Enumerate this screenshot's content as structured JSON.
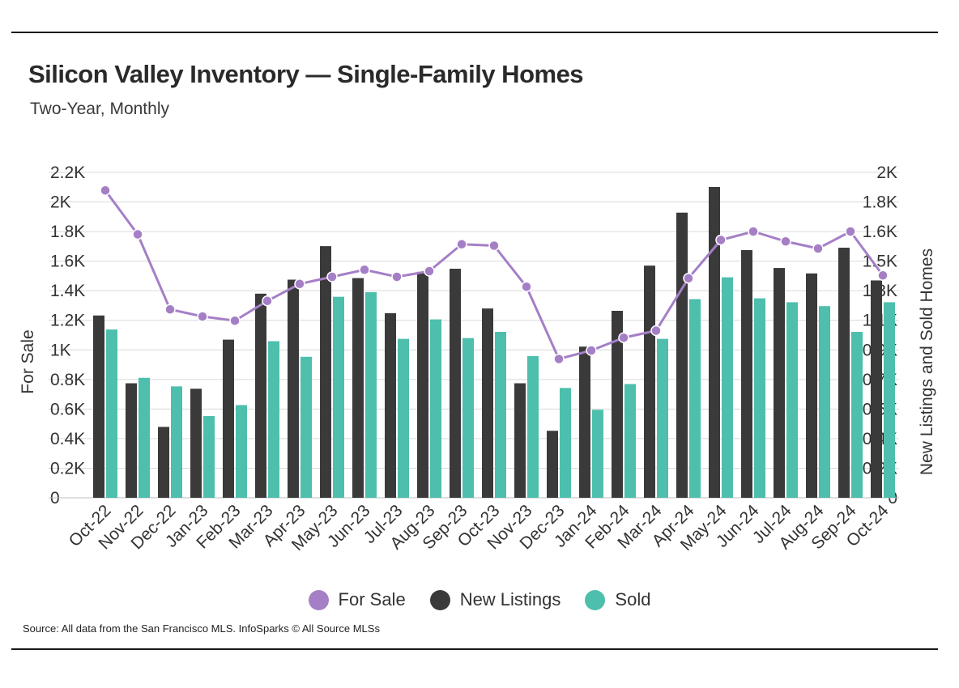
{
  "title": "Silicon Valley Inventory — Single-Family Homes",
  "subtitle": "Two-Year, Monthly",
  "source": "Source:  All data from the San Francisco MLS. InfoSparks © All Source MLSs",
  "colors": {
    "for_sale": "#a57fc6",
    "new_listings": "#3a3a3a",
    "sold": "#4dbfac",
    "grid": "#d9d9d9",
    "text": "#333333"
  },
  "legend": [
    {
      "label": "For Sale",
      "color": "#a57fc6"
    },
    {
      "label": "New Listings",
      "color": "#3a3a3a"
    },
    {
      "label": "Sold",
      "color": "#4dbfac"
    }
  ],
  "chart_data": {
    "type": "bar",
    "title": "Silicon Valley Inventory — Single-Family Homes",
    "subtitle": "Two-Year, Monthly",
    "categories": [
      "Oct-22",
      "Nov-22",
      "Dec-22",
      "Jan-23",
      "Feb-23",
      "Mar-23",
      "Apr-23",
      "May-23",
      "Jun-23",
      "Jul-23",
      "Aug-23",
      "Sep-23",
      "Oct-23",
      "Nov-23",
      "Dec-23",
      "Jan-24",
      "Feb-24",
      "Mar-24",
      "Apr-24",
      "May-24",
      "Jun-24",
      "Jul-24",
      "Aug-24",
      "Sep-24",
      "Oct-24"
    ],
    "left_axis": {
      "label": "For Sale",
      "ylim": [
        0,
        2200
      ],
      "ticks": [
        "0",
        "0.2K",
        "0.4K",
        "0.6K",
        "0.8K",
        "1K",
        "1.2K",
        "1.4K",
        "1.6K",
        "1.8K",
        "2K",
        "2.2K"
      ]
    },
    "right_axis": {
      "label": "New Listings and Sold Homes",
      "ylim": [
        0,
        2000
      ],
      "ticks": [
        "0",
        "0.2K",
        "0.4K",
        "0.5K",
        "0.7K",
        "0.9K",
        "1.1K",
        "1.3K",
        "1.5K",
        "1.6K",
        "1.8K",
        "2K"
      ]
    },
    "series": [
      {
        "name": "For Sale",
        "type": "line",
        "axis": "left",
        "values": [
          2170,
          1860,
          1330,
          1280,
          1250,
          1390,
          1510,
          1560,
          1610,
          1560,
          1600,
          1790,
          1780,
          1490,
          980,
          1040,
          1130,
          1180,
          1550,
          1820,
          1880,
          1810,
          1760,
          1880,
          1570
        ]
      },
      {
        "name": "New Listings",
        "type": "bar",
        "axis": "right",
        "values": [
          1170,
          735,
          455,
          700,
          1015,
          1310,
          1400,
          1615,
          1410,
          1185,
          1450,
          1470,
          1215,
          735,
          430,
          970,
          1200,
          1490,
          1830,
          1995,
          1590,
          1475,
          1440,
          1605,
          1395
        ]
      },
      {
        "name": "Sold",
        "type": "bar",
        "axis": "right",
        "values": [
          1080,
          770,
          715,
          525,
          595,
          1005,
          905,
          1290,
          1320,
          1020,
          1145,
          1025,
          1065,
          910,
          705,
          565,
          730,
          1020,
          1275,
          1415,
          1280,
          1255,
          1230,
          1065,
          1255
        ]
      }
    ],
    "grid": true,
    "legend_position": "bottom"
  }
}
